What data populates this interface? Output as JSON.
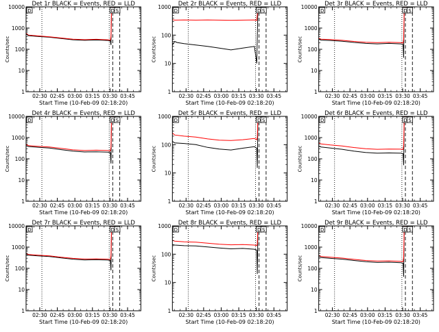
{
  "figure": {
    "xlabel": "Start Time (10-Feb-09 02:18:20)",
    "ylabel": "Counts/sec",
    "x_ticks": [
      "02:30",
      "02:45",
      "03:00",
      "03:15",
      "03:30",
      "03:45"
    ],
    "y_ticks": [
      "1",
      "10",
      "100",
      "1000",
      "10000"
    ],
    "symbol_markers": [
      "D",
      "S"
    ]
  },
  "colors": {
    "events": "#000000",
    "lld": "#ff0000",
    "background": "#ffffff"
  },
  "chart_data": [
    {
      "type": "line",
      "title": "Det 1r BLACK = Events, RED = LLD",
      "ylabel": "Counts/sec",
      "xlabel": "Start Time (10-Feb-09 02:18:20)",
      "x_units": "minutes after 02:18:20",
      "xlim": [
        0,
        98
      ],
      "ylim": [
        1,
        10000
      ],
      "yscale": "log",
      "y_ticks": [
        1,
        10,
        100,
        1000,
        10000
      ],
      "vlines": {
        "dotted": [
          13.5,
          71
        ],
        "dashed": [
          74,
          80
        ]
      },
      "series": [
        {
          "name": "Events",
          "color": "#000000",
          "x": [
            0,
            2,
            10,
            20,
            30,
            40,
            50,
            60,
            70,
            72,
            72.5,
            73,
            74.5,
            75
          ],
          "y": [
            520,
            440,
            400,
            370,
            320,
            280,
            265,
            275,
            260,
            250,
            160,
            9000,
            9000,
            9000
          ]
        },
        {
          "name": "LLD",
          "color": "#ff0000",
          "x": [
            0,
            2,
            10,
            20,
            30,
            40,
            50,
            60,
            70,
            72,
            72.5,
            73,
            74.5,
            75
          ],
          "y": [
            560,
            470,
            430,
            390,
            340,
            300,
            285,
            295,
            280,
            270,
            400,
            9200,
            9200,
            9200
          ]
        }
      ]
    },
    {
      "type": "line",
      "title": "Det 2r BLACK = Events, RED = LLD",
      "ylabel": "Counts/sec",
      "xlabel": "Start Time (10-Feb-09 02:18:20)",
      "x_units": "minutes after 02:18:20",
      "xlim": [
        0,
        98
      ],
      "ylim": [
        1,
        1000
      ],
      "yscale": "log",
      "y_ticks": [
        1,
        10,
        100,
        1000
      ],
      "vlines": {
        "dotted": [
          13.5,
          71
        ],
        "dashed": [
          74,
          80
        ]
      },
      "series": [
        {
          "name": "Events",
          "color": "#000000",
          "x": [
            0,
            2,
            4,
            10,
            20,
            30,
            40,
            50,
            60,
            70,
            72,
            73,
            74
          ],
          "y": [
            45,
            60,
            55,
            50,
            45,
            40,
            35,
            30,
            35,
            40,
            10,
            900,
            900
          ]
        },
        {
          "name": "LLD",
          "color": "#ff0000",
          "x": [
            0,
            2,
            10,
            20,
            30,
            40,
            50,
            60,
            70,
            72,
            73,
            74
          ],
          "y": [
            350,
            340,
            345,
            340,
            345,
            340,
            335,
            340,
            345,
            330,
            900,
            900
          ]
        }
      ]
    },
    {
      "type": "line",
      "title": "Det 3r BLACK = Events, RED = LLD",
      "ylabel": "Counts/sec",
      "xlabel": "Start Time (10-Feb-09 02:18:20)",
      "x_units": "minutes after 02:18:20",
      "xlim": [
        0,
        98
      ],
      "ylim": [
        1,
        10000
      ],
      "yscale": "log",
      "y_ticks": [
        1,
        10,
        100,
        1000,
        10000
      ],
      "vlines": {
        "dotted": [
          13.5,
          71
        ],
        "dashed": [
          74,
          80
        ]
      },
      "series": [
        {
          "name": "Events",
          "color": "#000000",
          "x": [
            0,
            2,
            10,
            20,
            30,
            40,
            50,
            60,
            70,
            72,
            72.5,
            73,
            74.5,
            75
          ],
          "y": [
            300,
            270,
            260,
            240,
            210,
            190,
            180,
            190,
            180,
            170,
            40,
            9000,
            9000,
            9000
          ]
        },
        {
          "name": "LLD",
          "color": "#ff0000",
          "x": [
            0,
            2,
            10,
            20,
            30,
            40,
            50,
            60,
            70,
            72,
            72.5,
            73,
            74.5,
            75
          ],
          "y": [
            330,
            300,
            290,
            265,
            235,
            215,
            205,
            215,
            205,
            195,
            300,
            9200,
            9200,
            9200
          ]
        }
      ]
    },
    {
      "type": "line",
      "title": "Det 4r BLACK = Events, RED = LLD",
      "ylabel": "Counts/sec",
      "xlabel": "Start Time (10-Feb-09 02:18:20)",
      "x_units": "minutes after 02:18:20",
      "xlim": [
        0,
        98
      ],
      "ylim": [
        1,
        10000
      ],
      "yscale": "log",
      "y_ticks": [
        1,
        10,
        100,
        1000,
        10000
      ],
      "vlines": {
        "dotted": [
          13.5,
          71
        ],
        "dashed": [
          74,
          80
        ]
      },
      "series": [
        {
          "name": "Events",
          "color": "#000000",
          "x": [
            0,
            2,
            10,
            20,
            30,
            40,
            50,
            60,
            70,
            72,
            72.5,
            73,
            74.5,
            75
          ],
          "y": [
            420,
            380,
            350,
            320,
            270,
            230,
            210,
            215,
            205,
            195,
            60,
            9000,
            9000,
            9000
          ]
        },
        {
          "name": "LLD",
          "color": "#ff0000",
          "x": [
            0,
            2,
            10,
            20,
            30,
            40,
            50,
            60,
            70,
            72,
            72.5,
            73,
            74.5,
            75
          ],
          "y": [
            480,
            420,
            390,
            360,
            310,
            265,
            245,
            255,
            245,
            235,
            350,
            9200,
            9200,
            9200
          ]
        }
      ]
    },
    {
      "type": "line",
      "title": "Det 5r BLACK = Events, RED = LLD",
      "ylabel": "Counts/sec",
      "xlabel": "Start Time (10-Feb-09 02:18:20)",
      "x_units": "minutes after 02:18:20",
      "xlim": [
        0,
        98
      ],
      "ylim": [
        1,
        1000
      ],
      "yscale": "log",
      "y_ticks": [
        1,
        10,
        100,
        1000
      ],
      "vlines": {
        "dotted": [
          13.5,
          71
        ],
        "dashed": [
          74,
          80
        ]
      },
      "series": [
        {
          "name": "Events",
          "color": "#000000",
          "x": [
            0,
            2,
            10,
            20,
            30,
            40,
            50,
            60,
            70,
            72,
            72.5,
            73,
            74
          ],
          "y": [
            130,
            115,
            110,
            100,
            80,
            70,
            65,
            75,
            85,
            75,
            15,
            900,
            900
          ]
        },
        {
          "name": "LLD",
          "color": "#ff0000",
          "x": [
            0,
            2,
            10,
            20,
            30,
            40,
            50,
            60,
            70,
            72,
            72.5,
            73,
            74
          ],
          "y": [
            260,
            220,
            200,
            185,
            160,
            145,
            140,
            150,
            165,
            150,
            180,
            900,
            900
          ]
        }
      ]
    },
    {
      "type": "line",
      "title": "Det 6r BLACK = Events, RED = LLD",
      "ylabel": "Counts/sec",
      "xlabel": "Start Time (10-Feb-09 02:18:20)",
      "x_units": "minutes after 02:18:20",
      "xlim": [
        0,
        98
      ],
      "ylim": [
        1,
        10000
      ],
      "yscale": "log",
      "y_ticks": [
        1,
        10,
        100,
        1000,
        10000
      ],
      "vlines": {
        "dotted": [
          13.5,
          71
        ],
        "dashed": [
          74,
          80
        ]
      },
      "series": [
        {
          "name": "Events",
          "color": "#000000",
          "x": [
            0,
            2,
            10,
            20,
            30,
            40,
            50,
            60,
            70,
            72,
            72.5,
            73,
            74.5,
            75
          ],
          "y": [
            400,
            360,
            320,
            280,
            230,
            200,
            185,
            190,
            185,
            175,
            50,
            9000,
            9000,
            9000
          ]
        },
        {
          "name": "LLD",
          "color": "#ff0000",
          "x": [
            0,
            2,
            10,
            20,
            30,
            40,
            50,
            60,
            70,
            72,
            72.5,
            73,
            74.5,
            75
          ],
          "y": [
            560,
            500,
            450,
            400,
            340,
            300,
            280,
            290,
            285,
            275,
            420,
            9200,
            9200,
            9200
          ]
        }
      ]
    },
    {
      "type": "line",
      "title": "Det 7r BLACK = Events, RED = LLD",
      "ylabel": "Counts/sec",
      "xlabel": "Start Time (10-Feb-09 02:18:20)",
      "x_units": "minutes after 02:18:20",
      "xlim": [
        0,
        98
      ],
      "ylim": [
        1,
        10000
      ],
      "yscale": "log",
      "y_ticks": [
        1,
        10,
        100,
        1000,
        10000
      ],
      "vlines": {
        "dotted": [
          13.5,
          71
        ],
        "dashed": [
          74,
          80
        ]
      },
      "series": [
        {
          "name": "Events",
          "color": "#000000",
          "x": [
            0,
            2,
            10,
            20,
            30,
            40,
            50,
            60,
            70,
            72,
            72.5,
            73,
            74.5,
            75
          ],
          "y": [
            470,
            420,
            390,
            360,
            310,
            270,
            250,
            255,
            245,
            235,
            80,
            9000,
            9000,
            9000
          ]
        },
        {
          "name": "LLD",
          "color": "#ff0000",
          "x": [
            0,
            2,
            10,
            20,
            30,
            40,
            50,
            60,
            70,
            72,
            72.5,
            73,
            74.5,
            75
          ],
          "y": [
            510,
            450,
            420,
            390,
            335,
            295,
            275,
            280,
            270,
            260,
            380,
            9200,
            9200,
            9200
          ]
        }
      ]
    },
    {
      "type": "line",
      "title": "Det 8r BLACK = Events, RED = LLD",
      "ylabel": "Counts/sec",
      "xlabel": "Start Time (10-Feb-09 02:18:20)",
      "x_units": "minutes after 02:18:20",
      "xlim": [
        0,
        98
      ],
      "ylim": [
        1,
        1000
      ],
      "yscale": "log",
      "y_ticks": [
        1,
        10,
        100,
        1000
      ],
      "vlines": {
        "dotted": [
          13.5,
          71
        ],
        "dashed": [
          74,
          80
        ]
      },
      "series": [
        {
          "name": "Events",
          "color": "#000000",
          "x": [
            0,
            2,
            10,
            20,
            30,
            40,
            50,
            60,
            70,
            72,
            72.5,
            73,
            74
          ],
          "y": [
            220,
            210,
            200,
            195,
            180,
            165,
            155,
            160,
            150,
            140,
            20,
            900,
            900
          ]
        },
        {
          "name": "LLD",
          "color": "#ff0000",
          "x": [
            0,
            2,
            10,
            20,
            30,
            40,
            50,
            60,
            70,
            72,
            72.5,
            73,
            74
          ],
          "y": [
            310,
            290,
            275,
            265,
            245,
            225,
            215,
            220,
            210,
            200,
            230,
            900,
            900
          ]
        }
      ]
    },
    {
      "type": "line",
      "title": "Det 9r BLACK = Events, RED = LLD",
      "ylabel": "Counts/sec",
      "xlabel": "Start Time (10-Feb-09 02:18:20)",
      "x_units": "minutes after 02:18:20",
      "xlim": [
        0,
        98
      ],
      "ylim": [
        1,
        10000
      ],
      "yscale": "log",
      "y_ticks": [
        1,
        10,
        100,
        1000,
        10000
      ],
      "vlines": {
        "dotted": [
          13.5,
          71
        ],
        "dashed": [
          74,
          80
        ]
      },
      "series": [
        {
          "name": "Events",
          "color": "#000000",
          "x": [
            0,
            2,
            10,
            20,
            30,
            40,
            50,
            60,
            70,
            72,
            72.5,
            73,
            74.5,
            75
          ],
          "y": [
            360,
            320,
            295,
            270,
            235,
            205,
            190,
            195,
            185,
            175,
            40,
            9000,
            9000,
            9000
          ]
        },
        {
          "name": "LLD",
          "color": "#ff0000",
          "x": [
            0,
            2,
            10,
            20,
            30,
            40,
            50,
            60,
            70,
            72,
            72.5,
            73,
            74.5,
            75
          ],
          "y": [
            410,
            365,
            335,
            305,
            265,
            235,
            220,
            225,
            215,
            205,
            320,
            9200,
            9200,
            9200
          ]
        }
      ]
    }
  ]
}
